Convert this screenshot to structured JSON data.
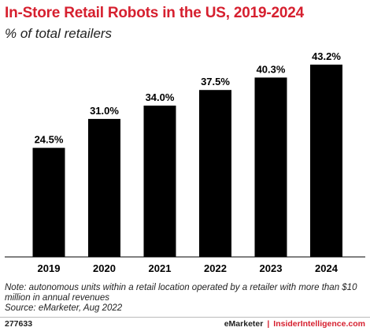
{
  "chart_data": {
    "type": "bar",
    "title": "In-Store Retail Robots in the US, 2019-2024",
    "subtitle": "% of total retailers",
    "categories": [
      "2019",
      "2020",
      "2021",
      "2022",
      "2023",
      "2024"
    ],
    "values": [
      24.5,
      31.0,
      34.0,
      37.5,
      40.3,
      43.2
    ],
    "value_labels": [
      "24.5%",
      "31.0%",
      "34.0%",
      "37.5%",
      "40.3%",
      "43.2%"
    ],
    "ylim": [
      0,
      43.2
    ],
    "grid": false,
    "bar_color": "#000000"
  },
  "footer": {
    "note": "Note: autonomous units within a retail location operated by a retailer with more than $10 million in annual revenues",
    "source": "Source: eMarketer, Aug 2022",
    "chart_id": "277633",
    "brand_primary": "eMarketer",
    "brand_separator": "|",
    "brand_secondary": "InsiderIntelligence.com"
  },
  "colors": {
    "title": "#d6202f",
    "text": "#222222"
  }
}
